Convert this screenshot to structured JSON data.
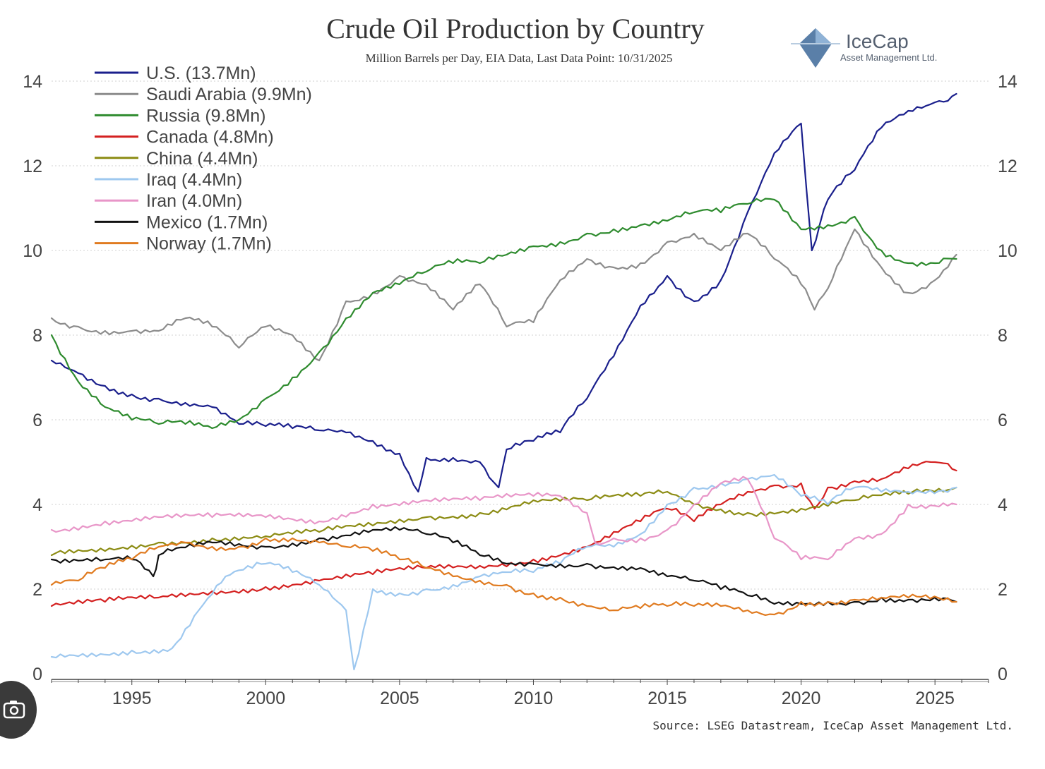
{
  "chart_data": {
    "type": "line",
    "title": "Crude Oil Production by Country",
    "subtitle": "Million Barrels per Day, EIA Data, Last Data Point: 10/31/2025",
    "source": "Source: LSEG Datastream, IceCap Asset Management Ltd.",
    "xlim": [
      1992,
      2027
    ],
    "ylim": [
      0,
      14
    ],
    "x_ticks": [
      "1995",
      "2000",
      "2005",
      "2010",
      "2015",
      "2020",
      "2025"
    ],
    "y_ticks": [
      "0",
      "2",
      "4",
      "6",
      "8",
      "10",
      "12",
      "14"
    ],
    "grid": true,
    "legend_position": "top-left",
    "series": [
      {
        "name": "U.S. (13.7Mn)",
        "color": "#1a1f8c",
        "points": [
          [
            1992,
            7.4
          ],
          [
            1993,
            7.1
          ],
          [
            1994,
            6.8
          ],
          [
            1995,
            6.6
          ],
          [
            1996,
            6.5
          ],
          [
            1997,
            6.4
          ],
          [
            1998,
            6.3
          ],
          [
            1999,
            5.9
          ],
          [
            2000,
            5.85
          ],
          [
            2001,
            5.8
          ],
          [
            2002,
            5.75
          ],
          [
            2003,
            5.7
          ],
          [
            2004,
            5.5
          ],
          [
            2005,
            5.2
          ],
          [
            2005.7,
            4.3
          ],
          [
            2006,
            5.1
          ],
          [
            2007,
            5.1
          ],
          [
            2008,
            5.0
          ],
          [
            2008.7,
            4.4
          ],
          [
            2009,
            5.3
          ],
          [
            2010,
            5.5
          ],
          [
            2011,
            5.7
          ],
          [
            2012,
            6.5
          ],
          [
            2013,
            7.5
          ],
          [
            2014,
            8.7
          ],
          [
            2015,
            9.4
          ],
          [
            2016,
            8.8
          ],
          [
            2017,
            9.3
          ],
          [
            2018,
            10.9
          ],
          [
            2019,
            12.3
          ],
          [
            2020,
            13.0
          ],
          [
            2020.4,
            10.0
          ],
          [
            2021,
            11.2
          ],
          [
            2022,
            11.9
          ],
          [
            2023,
            12.9
          ],
          [
            2024,
            13.3
          ],
          [
            2025,
            13.5
          ],
          [
            2025.8,
            13.7
          ]
        ]
      },
      {
        "name": "Saudi Arabia (9.9Mn)",
        "color": "#8c8c8c",
        "points": [
          [
            1992,
            8.4
          ],
          [
            1993,
            8.2
          ],
          [
            1994,
            8.1
          ],
          [
            1995,
            8.1
          ],
          [
            1996,
            8.1
          ],
          [
            1997,
            8.4
          ],
          [
            1998,
            8.2
          ],
          [
            1999,
            7.7
          ],
          [
            2000,
            8.2
          ],
          [
            2001,
            8.0
          ],
          [
            2002,
            7.4
          ],
          [
            2003,
            8.8
          ],
          [
            2004,
            9.0
          ],
          [
            2005,
            9.4
          ],
          [
            2006,
            9.2
          ],
          [
            2007,
            8.6
          ],
          [
            2008,
            9.2
          ],
          [
            2009,
            8.2
          ],
          [
            2010,
            8.3
          ],
          [
            2011,
            9.3
          ],
          [
            2012,
            9.8
          ],
          [
            2013,
            9.6
          ],
          [
            2014,
            9.7
          ],
          [
            2015,
            10.2
          ],
          [
            2016,
            10.4
          ],
          [
            2017,
            10.0
          ],
          [
            2018,
            10.4
          ],
          [
            2019,
            9.8
          ],
          [
            2020,
            9.2
          ],
          [
            2020.5,
            8.6
          ],
          [
            2021,
            9.1
          ],
          [
            2022,
            10.5
          ],
          [
            2023,
            9.6
          ],
          [
            2024,
            9.0
          ],
          [
            2025,
            9.3
          ],
          [
            2025.8,
            9.9
          ]
        ]
      },
      {
        "name": "Russia (9.8Mn)",
        "color": "#2e8b2e",
        "points": [
          [
            1992,
            8.0
          ],
          [
            1993,
            6.9
          ],
          [
            1994,
            6.3
          ],
          [
            1995,
            6.0
          ],
          [
            1996,
            5.9
          ],
          [
            1997,
            5.9
          ],
          [
            1998,
            5.8
          ],
          [
            1999,
            6.0
          ],
          [
            2000,
            6.5
          ],
          [
            2001,
            7.0
          ],
          [
            2002,
            7.6
          ],
          [
            2003,
            8.4
          ],
          [
            2004,
            9.0
          ],
          [
            2005,
            9.2
          ],
          [
            2006,
            9.5
          ],
          [
            2007,
            9.7
          ],
          [
            2008,
            9.7
          ],
          [
            2009,
            9.9
          ],
          [
            2010,
            10.1
          ],
          [
            2011,
            10.2
          ],
          [
            2012,
            10.4
          ],
          [
            2013,
            10.5
          ],
          [
            2014,
            10.6
          ],
          [
            2015,
            10.7
          ],
          [
            2016,
            10.9
          ],
          [
            2017,
            10.9
          ],
          [
            2018,
            11.1
          ],
          [
            2019,
            11.2
          ],
          [
            2020,
            10.5
          ],
          [
            2021,
            10.6
          ],
          [
            2022,
            10.8
          ],
          [
            2023,
            10.0
          ],
          [
            2024,
            9.7
          ],
          [
            2025,
            9.7
          ],
          [
            2025.8,
            9.8
          ]
        ]
      },
      {
        "name": "Canada (4.8Mn)",
        "color": "#d42020",
        "points": [
          [
            1992,
            1.6
          ],
          [
            1994,
            1.7
          ],
          [
            1996,
            1.8
          ],
          [
            1998,
            1.95
          ],
          [
            2000,
            2.05
          ],
          [
            2002,
            2.2
          ],
          [
            2004,
            2.35
          ],
          [
            2006,
            2.5
          ],
          [
            2008,
            2.55
          ],
          [
            2010,
            2.7
          ],
          [
            2012,
            3.0
          ],
          [
            2014,
            3.6
          ],
          [
            2015,
            3.9
          ],
          [
            2016,
            3.6
          ],
          [
            2017,
            4.0
          ],
          [
            2018,
            4.3
          ],
          [
            2019,
            4.45
          ],
          [
            2020,
            4.5
          ],
          [
            2020.5,
            3.9
          ],
          [
            2021,
            4.4
          ],
          [
            2022,
            4.55
          ],
          [
            2023,
            4.6
          ],
          [
            2024,
            4.85
          ],
          [
            2025,
            5.0
          ],
          [
            2025.8,
            4.8
          ]
        ]
      },
      {
        "name": "China (4.4Mn)",
        "color": "#8c8c14",
        "points": [
          [
            1992,
            2.8
          ],
          [
            1994,
            2.9
          ],
          [
            1996,
            3.1
          ],
          [
            1998,
            3.2
          ],
          [
            2000,
            3.25
          ],
          [
            2002,
            3.35
          ],
          [
            2004,
            3.5
          ],
          [
            2006,
            3.7
          ],
          [
            2008,
            3.8
          ],
          [
            2010,
            4.1
          ],
          [
            2012,
            4.1
          ],
          [
            2014,
            4.2
          ],
          [
            2015,
            4.3
          ],
          [
            2016,
            4.0
          ],
          [
            2018,
            3.8
          ],
          [
            2020,
            3.9
          ],
          [
            2022,
            4.1
          ],
          [
            2024,
            4.25
          ],
          [
            2025.8,
            4.4
          ]
        ]
      },
      {
        "name": "Iraq (4.4Mn)",
        "color": "#9ec8ef",
        "points": [
          [
            1992,
            0.4
          ],
          [
            1995,
            0.55
          ],
          [
            1996.5,
            0.6
          ],
          [
            1997.5,
            1.5
          ],
          [
            1998.5,
            2.3
          ],
          [
            1999.5,
            2.5
          ],
          [
            2000,
            2.6
          ],
          [
            2001,
            2.4
          ],
          [
            2002,
            2.1
          ],
          [
            2003,
            1.5
          ],
          [
            2003.3,
            0.1
          ],
          [
            2004,
            2.0
          ],
          [
            2005,
            1.9
          ],
          [
            2006,
            2.0
          ],
          [
            2007,
            2.1
          ],
          [
            2008,
            2.3
          ],
          [
            2009,
            2.4
          ],
          [
            2010,
            2.4
          ],
          [
            2011,
            2.6
          ],
          [
            2012,
            3.0
          ],
          [
            2013,
            3.0
          ],
          [
            2014,
            3.3
          ],
          [
            2015,
            4.0
          ],
          [
            2016,
            4.4
          ],
          [
            2017,
            4.5
          ],
          [
            2018,
            4.6
          ],
          [
            2019,
            4.7
          ],
          [
            2020,
            4.2
          ],
          [
            2021,
            4.0
          ],
          [
            2022,
            4.4
          ],
          [
            2023,
            4.3
          ],
          [
            2024,
            4.3
          ],
          [
            2025.8,
            4.4
          ]
        ]
      },
      {
        "name": "Iran (4.0Mn)",
        "color": "#e896c8",
        "points": [
          [
            1992,
            3.4
          ],
          [
            1994,
            3.6
          ],
          [
            1996,
            3.7
          ],
          [
            1998,
            3.7
          ],
          [
            2000,
            3.7
          ],
          [
            2002,
            3.6
          ],
          [
            2004,
            4.0
          ],
          [
            2006,
            4.1
          ],
          [
            2008,
            4.1
          ],
          [
            2010,
            4.2
          ],
          [
            2011,
            4.2
          ],
          [
            2012,
            3.8
          ],
          [
            2012.3,
            3.1
          ],
          [
            2013,
            3.2
          ],
          [
            2014,
            3.2
          ],
          [
            2015,
            3.4
          ],
          [
            2016,
            4.0
          ],
          [
            2017,
            4.5
          ],
          [
            2018,
            4.6
          ],
          [
            2019,
            3.2
          ],
          [
            2020,
            2.7
          ],
          [
            2021,
            2.7
          ],
          [
            2022,
            3.2
          ],
          [
            2023,
            3.3
          ],
          [
            2024,
            4.0
          ],
          [
            2025.8,
            4.0
          ]
        ]
      },
      {
        "name": "Mexico (1.7Mn)",
        "color": "#111111",
        "points": [
          [
            1992,
            2.7
          ],
          [
            1994,
            2.7
          ],
          [
            1995,
            2.7
          ],
          [
            1995.8,
            2.3
          ],
          [
            1996,
            2.8
          ],
          [
            1998,
            3.1
          ],
          [
            2000,
            3.0
          ],
          [
            2002,
            3.2
          ],
          [
            2004,
            3.4
          ],
          [
            2005,
            3.4
          ],
          [
            2006,
            3.3
          ],
          [
            2007,
            3.1
          ],
          [
            2008,
            2.8
          ],
          [
            2009,
            2.6
          ],
          [
            2010,
            2.6
          ],
          [
            2012,
            2.6
          ],
          [
            2014,
            2.5
          ],
          [
            2015,
            2.3
          ],
          [
            2016,
            2.2
          ],
          [
            2017,
            2.0
          ],
          [
            2018,
            1.85
          ],
          [
            2019,
            1.65
          ],
          [
            2020,
            1.65
          ],
          [
            2021,
            1.7
          ],
          [
            2022,
            1.7
          ],
          [
            2023,
            1.8
          ],
          [
            2024,
            1.75
          ],
          [
            2025.8,
            1.7
          ]
        ]
      },
      {
        "name": "Norway (1.7Mn)",
        "color": "#e07b20",
        "points": [
          [
            1992,
            2.1
          ],
          [
            1993,
            2.2
          ],
          [
            1994,
            2.5
          ],
          [
            1995,
            2.7
          ],
          [
            1996,
            3.0
          ],
          [
            1997,
            3.1
          ],
          [
            1998,
            3.0
          ],
          [
            1999,
            3.0
          ],
          [
            2000,
            3.2
          ],
          [
            2001,
            3.2
          ],
          [
            2002,
            3.1
          ],
          [
            2003,
            3.0
          ],
          [
            2004,
            2.9
          ],
          [
            2005,
            2.7
          ],
          [
            2006,
            2.5
          ],
          [
            2007,
            2.3
          ],
          [
            2008,
            2.2
          ],
          [
            2009,
            2.1
          ],
          [
            2010,
            1.9
          ],
          [
            2011,
            1.8
          ],
          [
            2012,
            1.6
          ],
          [
            2013,
            1.5
          ],
          [
            2014,
            1.55
          ],
          [
            2015,
            1.6
          ],
          [
            2016,
            1.6
          ],
          [
            2017,
            1.6
          ],
          [
            2018,
            1.5
          ],
          [
            2019,
            1.4
          ],
          [
            2020,
            1.7
          ],
          [
            2021,
            1.7
          ],
          [
            2022,
            1.75
          ],
          [
            2023,
            1.8
          ],
          [
            2024,
            1.8
          ],
          [
            2025.8,
            1.7
          ]
        ]
      }
    ]
  },
  "logo": {
    "name": "IceCap",
    "tagline": "Asset Management Ltd."
  },
  "icons": {
    "logo": "iceberg-diamond-icon",
    "camera": "camera-search-icon"
  }
}
